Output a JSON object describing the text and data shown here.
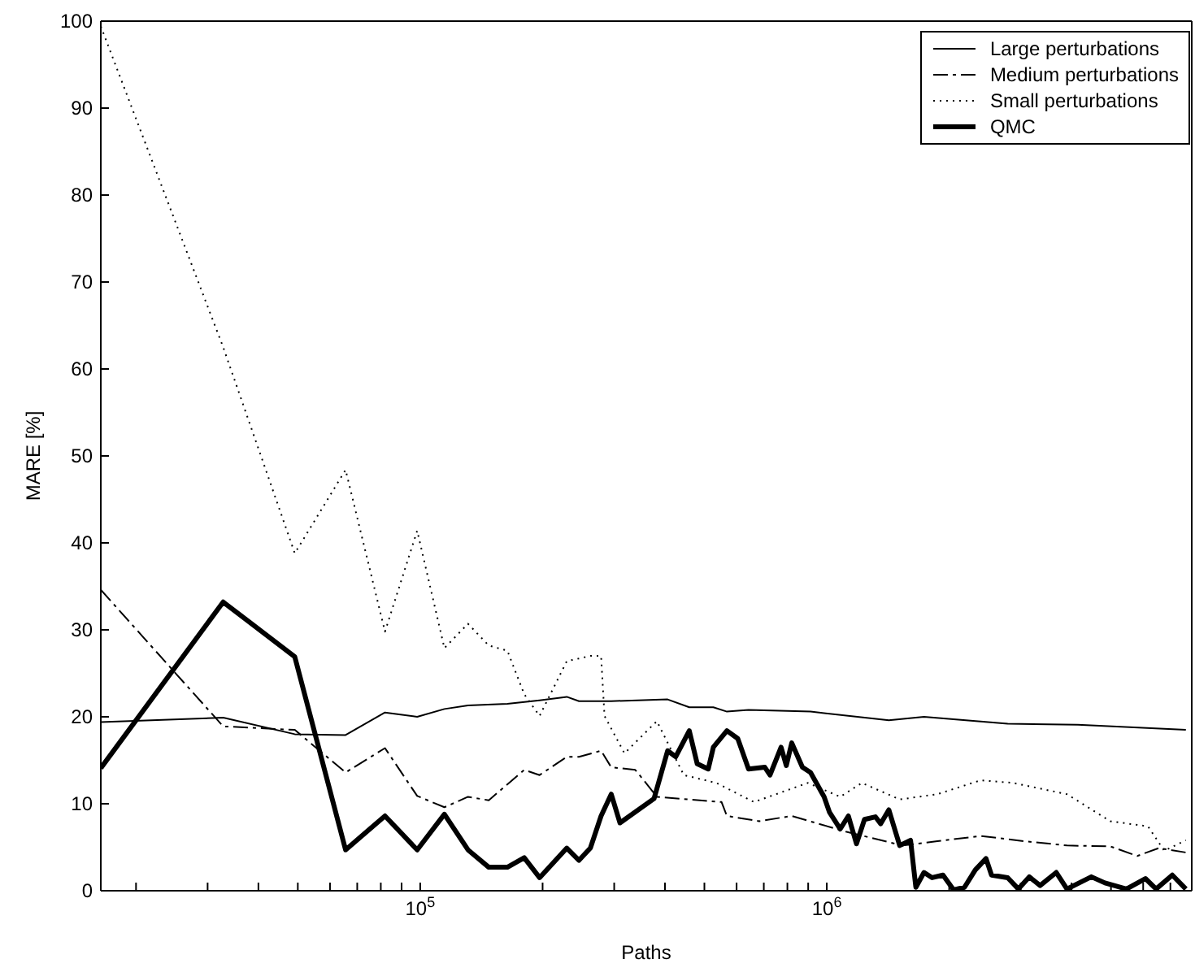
{
  "chart_data": {
    "type": "line",
    "xlabel": "Paths",
    "ylabel": "MARE [%]",
    "log": "x",
    "legend": "top right",
    "marker": "none",
    "xlim": [
      16384,
      7900000
    ],
    "ylim": [
      0,
      100
    ],
    "xticks": [
      {
        "value": 20000,
        "label": null
      },
      {
        "value": 30000,
        "label": null
      },
      {
        "value": 40000,
        "label": null
      },
      {
        "value": 50000,
        "label": null
      },
      {
        "value": 60000,
        "label": null
      },
      {
        "value": 70000,
        "label": null
      },
      {
        "value": 80000,
        "label": null
      },
      {
        "value": 90000,
        "label": null
      },
      {
        "value": 100000,
        "label": "10$^{5}$"
      },
      {
        "value": 200000,
        "label": null
      },
      {
        "value": 300000,
        "label": null
      },
      {
        "value": 400000,
        "label": null
      },
      {
        "value": 500000,
        "label": null
      },
      {
        "value": 600000,
        "label": null
      },
      {
        "value": 700000,
        "label": null
      },
      {
        "value": 800000,
        "label": null
      },
      {
        "value": 900000,
        "label": null
      },
      {
        "value": 1000000,
        "label": "10$^{6}$"
      },
      {
        "value": 2000000,
        "label": null
      },
      {
        "value": 3000000,
        "label": null
      },
      {
        "value": 4000000,
        "label": null
      },
      {
        "value": 5000000,
        "label": null
      },
      {
        "value": 6000000,
        "label": null
      },
      {
        "value": 7000000,
        "label": null
      }
    ],
    "yticks": [
      0,
      10,
      20,
      30,
      40,
      50,
      60,
      70,
      80,
      90,
      100
    ],
    "series": [
      {
        "name": "Large perturbations",
        "color": "#000000",
        "line_style": "solid",
        "x": [
          16384,
          32768,
          49152,
          65536,
          81920,
          98304,
          114688,
          131072,
          163840,
          196608,
          229376,
          245760,
          278528,
          295000,
          406000,
          459000,
          526000,
          568000,
          642000,
          912000,
          1421000,
          1734000,
          2786000,
          4145000,
          7641000
        ],
        "values": [
          19.4,
          19.9,
          18.0,
          17.9,
          20.5,
          20.0,
          20.9,
          21.3,
          21.5,
          21.9,
          22.3,
          21.8,
          21.8,
          21.8,
          22.0,
          21.1,
          21.1,
          20.6,
          20.8,
          20.6,
          19.6,
          20.0,
          19.2,
          19.1,
          18.5
        ]
      },
      {
        "name": "Medium perturbations",
        "color": "#000000",
        "line_style": "dashed",
        "x": [
          16384,
          32768,
          49152,
          65536,
          81920,
          98304,
          114688,
          131072,
          147456,
          180224,
          196608,
          229376,
          245760,
          278528,
          295000,
          338000,
          359000,
          382000,
          551000,
          568000,
          682000,
          820000,
          955000,
          1113000,
          1535000,
          1871000,
          2390000,
          3054000,
          3897000,
          4980000,
          5802000,
          6558000,
          7641000
        ],
        "values": [
          34.6,
          18.9,
          18.5,
          13.6,
          16.4,
          10.9,
          9.6,
          10.8,
          10.4,
          13.9,
          13.3,
          15.4,
          15.4,
          16.1,
          14.2,
          13.9,
          12.4,
          10.8,
          10.2,
          8.6,
          8.0,
          8.6,
          7.7,
          6.8,
          5.2,
          5.7,
          6.3,
          5.7,
          5.2,
          5.1,
          4.0,
          4.9,
          4.4
        ]
      },
      {
        "name": "Small perturbations",
        "color": "#000000",
        "line_style": "dotted",
        "x": [
          16384,
          32768,
          49152,
          65536,
          81920,
          98304,
          114688,
          131072,
          147456,
          163840,
          180224,
          196608,
          229376,
          262144,
          278528,
          284000,
          318000,
          382000,
          445000,
          535000,
          662000,
          898000,
          1079000,
          1220000,
          1511000,
          1871000,
          2390000,
          2872000,
          3897000,
          4980000,
          6166000,
          6760000,
          7641000
        ],
        "values": [
          99.4,
          62.5,
          38.8,
          48.4,
          29.8,
          41.4,
          27.9,
          30.7,
          28.2,
          27.6,
          22.6,
          20.1,
          26.4,
          27.0,
          27.0,
          20.1,
          15.8,
          19.5,
          13.3,
          12.4,
          10.2,
          12.4,
          10.8,
          12.4,
          10.5,
          11.1,
          12.7,
          12.4,
          11.1,
          8.0,
          7.4,
          4.6,
          5.8
        ]
      },
      {
        "name": "QMC",
        "color": "#000000",
        "line_style": "solid",
        "x": [
          16384,
          32768,
          49152,
          65536,
          81920,
          98304,
          114688,
          131072,
          147456,
          163840,
          180224,
          196608,
          229376,
          245760,
          262144,
          278528,
          295000,
          310000,
          376000,
          406000,
          425000,
          459000,
          480000,
          511000,
          526000,
          568000,
          604000,
          642000,
          704000,
          725000,
          772000,
          795000,
          820000,
          871000,
          912000,
          985000,
          1016000,
          1079000,
          1130000,
          1183000,
          1238000,
          1317000,
          1357000,
          1421000,
          1511000,
          1607000,
          1656000,
          1734000,
          1816000,
          1931000,
          2051000,
          2181000,
          2319000,
          2464000,
          2542000,
          2786000,
          2960000,
          3148000,
          3347000,
          3668000,
          3897000,
          4474000,
          4832000,
          5458000,
          6076000,
          6457000,
          7076000,
          7641000
        ],
        "values": [
          14.1,
          33.2,
          26.9,
          4.7,
          8.6,
          4.7,
          8.8,
          4.7,
          2.7,
          2.7,
          3.8,
          1.5,
          4.9,
          3.5,
          4.9,
          8.6,
          11.1,
          7.8,
          10.6,
          16.1,
          15.4,
          18.4,
          14.6,
          14.0,
          16.5,
          18.4,
          17.5,
          14.0,
          14.2,
          13.3,
          16.5,
          14.4,
          17.0,
          14.2,
          13.6,
          10.8,
          9.0,
          7.1,
          8.6,
          5.4,
          8.2,
          8.5,
          7.7,
          9.3,
          5.2,
          5.8,
          0.4,
          2.1,
          1.5,
          1.8,
          0.1,
          0.4,
          2.4,
          3.7,
          1.8,
          1.5,
          0.2,
          1.6,
          0.6,
          2.1,
          0.2,
          1.6,
          0.9,
          0.2,
          1.4,
          0.2,
          1.8,
          0.2
        ]
      }
    ]
  }
}
